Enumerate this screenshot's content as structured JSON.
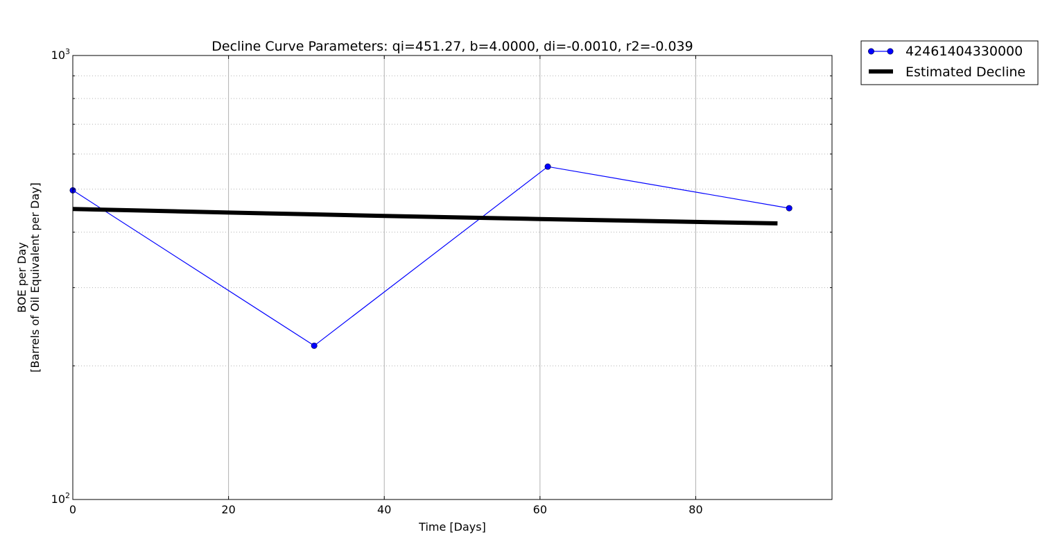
{
  "chart_data": {
    "type": "line",
    "title": "Decline Curve Parameters: qi=451.27, b=4.0000, di=-0.0010, r2=-0.039",
    "xlabel": "Time [Days]",
    "ylabel_line1": "BOE per Day",
    "ylabel_line2": "[Barrels of Oil Equivalent per Day]",
    "xlim": [
      0,
      97.5
    ],
    "ylim": [
      100,
      1000
    ],
    "y_scale": "log",
    "x_ticks": [
      0,
      20,
      40,
      60,
      80
    ],
    "x_tick_labels": [
      "0",
      "20",
      "40",
      "60",
      "80"
    ],
    "y_tick_labels": [
      {
        "base": "10",
        "exp": "2",
        "value": 100
      },
      {
        "base": "10",
        "exp": "3",
        "value": 1000
      }
    ],
    "y_minor_gridlines": [
      200,
      300,
      400,
      500,
      600,
      700,
      800,
      900
    ],
    "grid": true,
    "legend_position": "outside-top-right",
    "series": [
      {
        "name": "42461404330000",
        "style": "line-marker",
        "color": "#0000ff",
        "x": [
          0,
          31,
          61,
          92
        ],
        "y": [
          497,
          222,
          562,
          453
        ]
      },
      {
        "name": "Estimated Decline",
        "style": "thick-line",
        "color": "#000000",
        "x": [
          0,
          10,
          20,
          30,
          40,
          50,
          60,
          70,
          80,
          90.5
        ],
        "y": [
          451.27,
          447.0,
          442.9,
          439.0,
          435.3,
          431.7,
          428.3,
          425.0,
          421.9,
          418.7
        ]
      }
    ]
  }
}
